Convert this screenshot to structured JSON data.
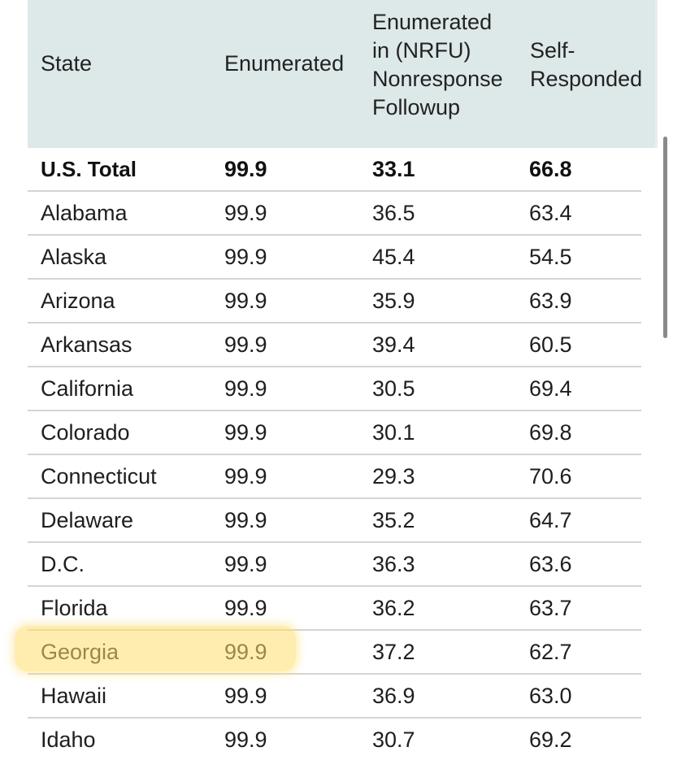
{
  "table": {
    "headers": {
      "state": "State",
      "enumerated": "Enumerated",
      "nrfu_line1": "Enumerated",
      "nrfu_line2": "in (NRFU)",
      "nrfu_line3": "Nonresponse",
      "nrfu_line4": "Followup",
      "self_line1": "Self-",
      "self_line2": "Responded"
    },
    "rows": [
      {
        "state": "U.S. Total",
        "enumerated": "99.9",
        "nrfu": "33.1",
        "self": "66.8"
      },
      {
        "state": "Alabama",
        "enumerated": "99.9",
        "nrfu": "36.5",
        "self": "63.4"
      },
      {
        "state": "Alaska",
        "enumerated": "99.9",
        "nrfu": "45.4",
        "self": "54.5"
      },
      {
        "state": "Arizona",
        "enumerated": "99.9",
        "nrfu": "35.9",
        "self": "63.9"
      },
      {
        "state": "Arkansas",
        "enumerated": "99.9",
        "nrfu": "39.4",
        "self": "60.5"
      },
      {
        "state": "California",
        "enumerated": "99.9",
        "nrfu": "30.5",
        "self": "69.4"
      },
      {
        "state": "Colorado",
        "enumerated": "99.9",
        "nrfu": "30.1",
        "self": "69.8"
      },
      {
        "state": "Connecticut",
        "enumerated": "99.9",
        "nrfu": "29.3",
        "self": "70.6"
      },
      {
        "state": "Delaware",
        "enumerated": "99.9",
        "nrfu": "35.2",
        "self": "64.7"
      },
      {
        "state": "D.C.",
        "enumerated": "99.9",
        "nrfu": "36.3",
        "self": "63.6"
      },
      {
        "state": "Florida",
        "enumerated": "99.9",
        "nrfu": "36.2",
        "self": "63.7"
      },
      {
        "state": "Georgia",
        "enumerated": "99.9",
        "nrfu": "37.2",
        "self": "62.7"
      },
      {
        "state": "Hawaii",
        "enumerated": "99.9",
        "nrfu": "36.9",
        "self": "63.0"
      },
      {
        "state": "Idaho",
        "enumerated": "99.9",
        "nrfu": "30.7",
        "self": "69.2"
      }
    ]
  },
  "colors": {
    "header_bg": "#dde8e8",
    "highlight": "#ffde6e",
    "row_border": "#d4d4d4"
  }
}
